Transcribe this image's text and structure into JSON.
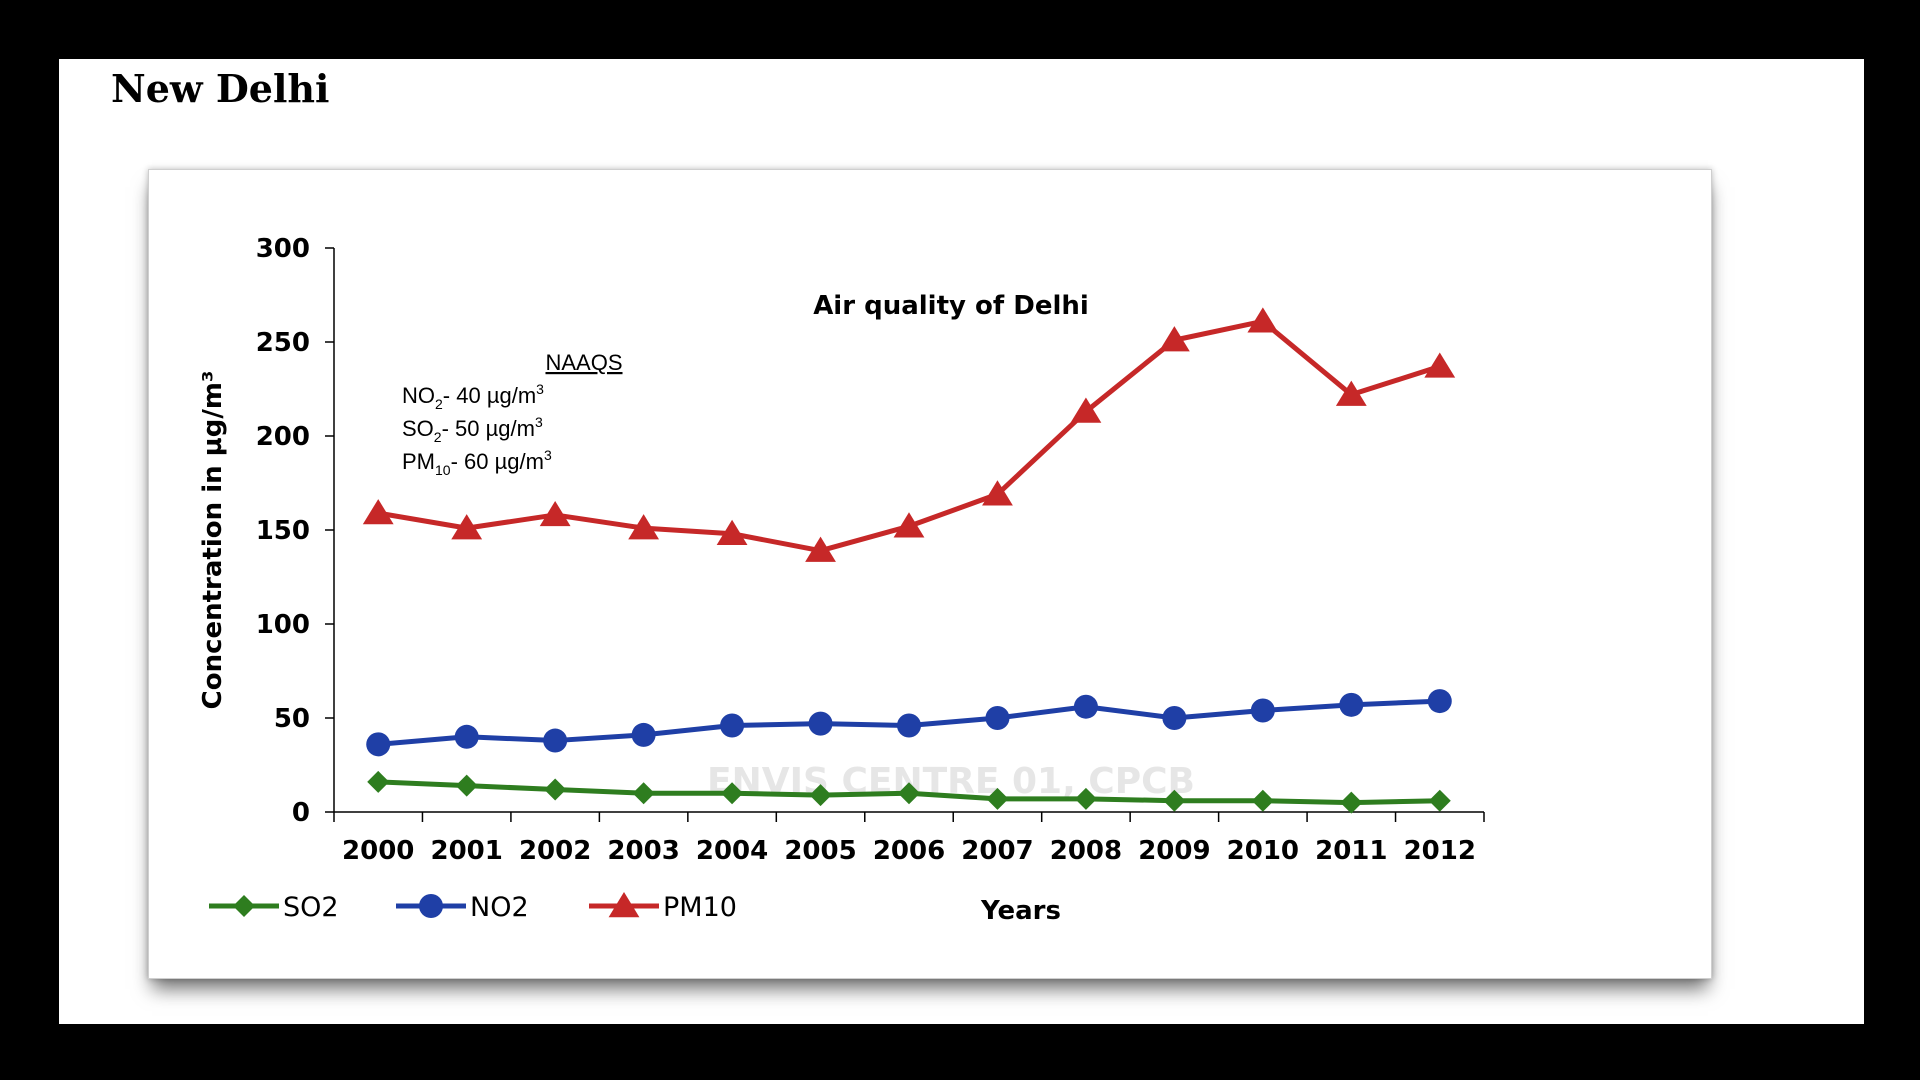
{
  "page": {
    "heading": "New Delhi"
  },
  "chart_data": {
    "type": "line",
    "title": "Air quality of Delhi",
    "xlabel": "Years",
    "ylabel": "Concentration in µg/m³",
    "ylim": [
      0,
      300
    ],
    "yticks": [
      0,
      50,
      100,
      150,
      200,
      250,
      300
    ],
    "categories": [
      "2000",
      "2001",
      "2002",
      "2003",
      "2004",
      "2005",
      "2006",
      "2007",
      "2008",
      "2009",
      "2010",
      "2011",
      "2012"
    ],
    "grid": false,
    "legend_position": "bottom-left",
    "series": [
      {
        "name": "SO2",
        "marker": "diamond",
        "color": "#2e7d1f",
        "values": [
          16,
          14,
          12,
          10,
          10,
          9,
          10,
          7,
          7,
          6,
          6,
          5,
          6
        ]
      },
      {
        "name": "NO2",
        "marker": "circle",
        "color": "#1f3fa6",
        "values": [
          36,
          40,
          38,
          41,
          46,
          47,
          46,
          50,
          56,
          50,
          54,
          57,
          59
        ]
      },
      {
        "name": "PM10",
        "marker": "triangle",
        "color": "#c62828",
        "values": [
          159,
          151,
          158,
          151,
          148,
          139,
          152,
          169,
          213,
          251,
          261,
          222,
          237
        ]
      }
    ],
    "annotation": {
      "heading": "NAAQS",
      "lines": [
        {
          "prefix": "NO",
          "sub": "2",
          "suffix": "- 40 µg/m",
          "sup": "3"
        },
        {
          "prefix": "SO",
          "sub": "2",
          "suffix": "- 50 µg/m",
          "sup": "3"
        },
        {
          "prefix": "PM",
          "sub": "10",
          "suffix": "- 60 µg/m",
          "sup": "3"
        }
      ]
    },
    "watermark": "ENVIS CENTRE 01, CPCB"
  }
}
